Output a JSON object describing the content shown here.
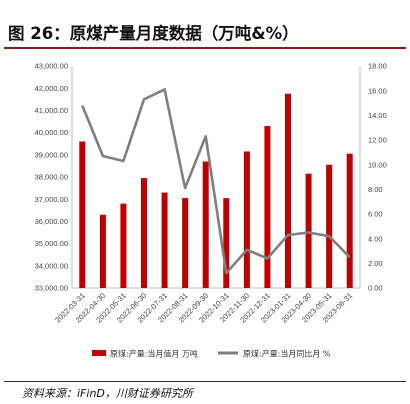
{
  "header": {
    "title": "图 26：原煤产量月度数据（万吨&%）"
  },
  "footer": {
    "source": "资料来源：iFinD，川财证券研究所"
  },
  "colors": {
    "bar": "#c00000",
    "line": "#7f7f7f",
    "title_rule": "#8a1a1a"
  },
  "chart_data": {
    "type": "bar",
    "categories": [
      "2022-03-31",
      "2022-04-30",
      "2022-05-31",
      "2022-06-30",
      "2022-07-31",
      "2022-08-31",
      "2022-09-30",
      "2022-10-31",
      "2022-11-30",
      "2022-12-31",
      "2023-01-31",
      "2023-04-30",
      "2023-05-31",
      "2023-06-31"
    ],
    "series": [
      {
        "name": "原煤:产量:当月值月 万吨",
        "chart": "bar",
        "axis": "left",
        "values": [
          39600,
          36300,
          36800,
          37950,
          37300,
          37050,
          38700,
          37050,
          39150,
          40300,
          41750,
          38150,
          38550,
          39050
        ]
      },
      {
        "name": "原煤:产量:当月同比月 %",
        "chart": "line",
        "axis": "right",
        "values": [
          14.8,
          10.7,
          10.3,
          15.3,
          16.1,
          8.1,
          12.3,
          1.2,
          3.1,
          2.4,
          4.3,
          4.5,
          4.2,
          2.5
        ]
      }
    ],
    "y_left": {
      "ylim": [
        33000,
        43000
      ],
      "ticks": [
        "33,000.00",
        "34,000.00",
        "35,000.00",
        "36,000.00",
        "37,000.00",
        "38,000.00",
        "39,000.00",
        "40,000.00",
        "41,000.00",
        "42,000.00",
        "43,000.00"
      ]
    },
    "y_right": {
      "ylim": [
        0,
        18
      ],
      "ticks": [
        "0.00",
        "2.00",
        "4.00",
        "6.00",
        "8.00",
        "10.00",
        "12.00",
        "14.00",
        "16.00",
        "18.00"
      ]
    },
    "grid": false,
    "legend": "bottom"
  }
}
